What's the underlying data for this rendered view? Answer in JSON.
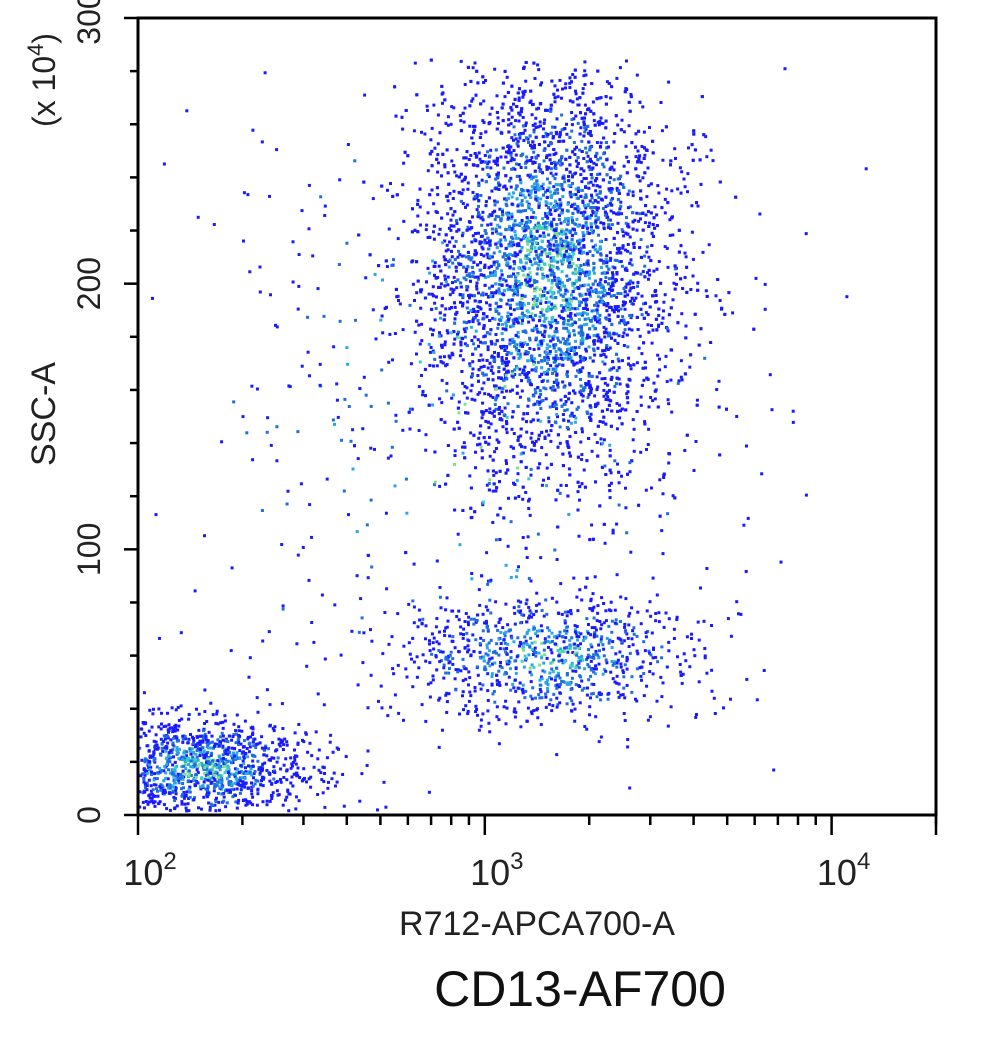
{
  "chart_data": {
    "type": "scatter",
    "style": "density-dot-plot",
    "xlabel": "R712-APCA700-A",
    "ylabel": "SSC-A",
    "y_multiplier_label": "(x 10",
    "y_multiplier_exp": "4",
    "y_multiplier_close": ")",
    "x_scale": "log",
    "xlim": [
      100,
      20000
    ],
    "ylim": [
      0,
      300
    ],
    "x_ticks": [
      {
        "base": "10",
        "exp": "2",
        "value": 100
      },
      {
        "base": "10",
        "exp": "3",
        "value": 1000
      },
      {
        "base": "10",
        "exp": "4",
        "value": 10000
      }
    ],
    "y_ticks": [
      {
        "label": "0",
        "value": 0
      },
      {
        "label": "100",
        "value": 100
      },
      {
        "label": "200",
        "value": 200
      },
      {
        "label": "300",
        "value": 300
      }
    ],
    "grid": false,
    "density_colors": [
      "#1a1aff",
      "#1f6fe0",
      "#2aa8e6",
      "#38d0c8",
      "#7fe08a"
    ],
    "populations": [
      {
        "x_center": 1500,
        "y_center": 205,
        "x_log_spread": 0.18,
        "y_spread": 38,
        "count": 5200
      },
      {
        "x_center": 1500,
        "y_center": 60,
        "x_log_spread": 0.22,
        "y_spread": 12,
        "count": 900
      },
      {
        "x_center": 150,
        "y_center": 18,
        "x_log_spread": 0.16,
        "y_spread": 9,
        "count": 1300
      },
      {
        "x_center": 900,
        "y_center": 150,
        "x_log_spread": 0.45,
        "y_spread": 70,
        "count": 450
      }
    ]
  },
  "caption": "CD13-AF700"
}
